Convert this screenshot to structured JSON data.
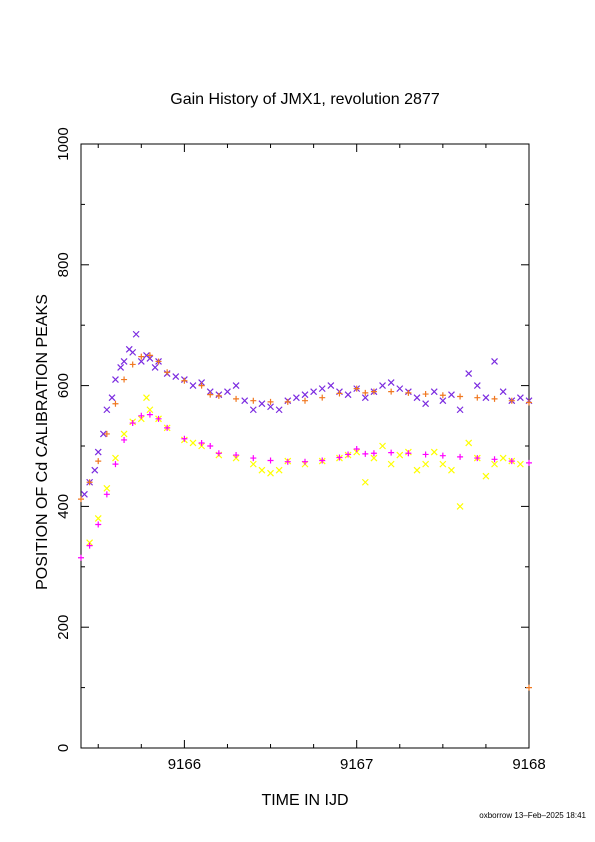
{
  "chart_data": {
    "type": "scatter",
    "title": "Gain History of JMX1, revolution 2877",
    "xlabel": "TIME IN IJD",
    "ylabel": "POSITION OF Cd CALIBRATION PEAKS",
    "xlim": [
      9165.4,
      9168
    ],
    "ylim": [
      0,
      1000
    ],
    "xticks": [
      9166,
      9167,
      9168
    ],
    "yticks": [
      0,
      200,
      400,
      600,
      800,
      1000
    ],
    "grid": false,
    "legend": "none",
    "series": [
      {
        "marker": "x",
        "color": "#7b2be0",
        "x": [
          9165.42,
          9165.45,
          9165.48,
          9165.5,
          9165.53,
          9165.55,
          9165.58,
          9165.6,
          9165.63,
          9165.65,
          9165.68,
          9165.7,
          9165.72,
          9165.75,
          9165.78,
          9165.8,
          9165.83,
          9165.85,
          9165.9,
          9165.95,
          9166.0,
          9166.05,
          9166.1,
          9166.15,
          9166.2,
          9166.25,
          9166.3,
          9166.35,
          9166.4,
          9166.45,
          9166.5,
          9166.55,
          9166.6,
          9166.65,
          9166.7,
          9166.75,
          9166.8,
          9166.85,
          9166.9,
          9166.95,
          9167.0,
          9167.05,
          9167.1,
          9167.15,
          9167.2,
          9167.25,
          9167.3,
          9167.35,
          9167.4,
          9167.45,
          9167.5,
          9167.55,
          9167.6,
          9167.65,
          9167.7,
          9167.75,
          9167.8,
          9167.85,
          9167.9,
          9167.95,
          9168.0
        ],
        "y": [
          420,
          440,
          460,
          490,
          520,
          560,
          580,
          610,
          630,
          640,
          660,
          655,
          685,
          640,
          650,
          645,
          630,
          640,
          620,
          615,
          610,
          600,
          605,
          590,
          585,
          590,
          600,
          575,
          560,
          570,
          565,
          560,
          575,
          580,
          585,
          590,
          595,
          600,
          590,
          585,
          595,
          580,
          590,
          600,
          605,
          595,
          590,
          580,
          570,
          590,
          575,
          585,
          560,
          620,
          600,
          580,
          640,
          590,
          575,
          580,
          575
        ]
      },
      {
        "marker": "+",
        "color": "#f07820",
        "x": [
          9165.4,
          9165.45,
          9165.5,
          9165.55,
          9165.6,
          9165.65,
          9165.7,
          9165.75,
          9165.8,
          9165.85,
          9165.9,
          9166.0,
          9166.1,
          9166.15,
          9166.2,
          9166.3,
          9166.4,
          9166.5,
          9166.6,
          9166.7,
          9166.8,
          9166.9,
          9167.0,
          9167.05,
          9167.1,
          9167.2,
          9167.3,
          9167.4,
          9167.5,
          9167.6,
          9167.7,
          9167.8,
          9167.9,
          9168.0,
          9168.0
        ],
        "y": [
          412,
          440,
          475,
          520,
          570,
          610,
          635,
          648,
          650,
          640,
          622,
          608,
          600,
          585,
          583,
          578,
          575,
          573,
          573,
          575,
          580,
          587,
          595,
          588,
          590,
          590,
          588,
          586,
          584,
          582,
          580,
          578,
          575,
          572,
          100
        ]
      },
      {
        "marker": "x",
        "color": "#ffff00",
        "x": [
          9165.45,
          9165.5,
          9165.55,
          9165.6,
          9165.65,
          9165.7,
          9165.75,
          9165.78,
          9165.8,
          9165.85,
          9165.9,
          9166.0,
          9166.05,
          9166.1,
          9166.2,
          9166.3,
          9166.4,
          9166.45,
          9166.5,
          9166.55,
          9166.6,
          9166.7,
          9166.8,
          9166.9,
          9166.95,
          9167.0,
          9167.05,
          9167.1,
          9167.15,
          9167.2,
          9167.25,
          9167.3,
          9167.35,
          9167.4,
          9167.45,
          9167.5,
          9167.55,
          9167.6,
          9167.65,
          9167.7,
          9167.75,
          9167.8,
          9167.85,
          9167.9,
          9167.95
        ],
        "y": [
          340,
          380,
          430,
          480,
          520,
          540,
          545,
          580,
          560,
          545,
          530,
          510,
          505,
          500,
          485,
          480,
          470,
          460,
          455,
          460,
          475,
          470,
          475,
          480,
          485,
          490,
          440,
          480,
          500,
          470,
          485,
          490,
          460,
          470,
          490,
          470,
          460,
          400,
          505,
          480,
          450,
          470,
          480,
          475,
          470
        ]
      },
      {
        "marker": "+",
        "color": "#ff00ff",
        "x": [
          9165.4,
          9165.45,
          9165.5,
          9165.55,
          9165.6,
          9165.65,
          9165.7,
          9165.75,
          9165.8,
          9165.85,
          9165.9,
          9166.0,
          9166.1,
          9166.15,
          9166.2,
          9166.3,
          9166.4,
          9166.5,
          9166.6,
          9166.7,
          9166.8,
          9166.9,
          9166.95,
          9167.0,
          9167.05,
          9167.1,
          9167.2,
          9167.3,
          9167.4,
          9167.5,
          9167.6,
          9167.7,
          9167.8,
          9167.9,
          9168.0
        ],
        "y": [
          315,
          335,
          370,
          420,
          470,
          510,
          538,
          550,
          552,
          545,
          530,
          512,
          505,
          500,
          488,
          485,
          480,
          476,
          474,
          474,
          476,
          481,
          486,
          495,
          487,
          488,
          489,
          488,
          486,
          484,
          482,
          480,
          478,
          475,
          472
        ]
      }
    ]
  },
  "footer": "oxborrow 13–Feb–2025 18:41"
}
